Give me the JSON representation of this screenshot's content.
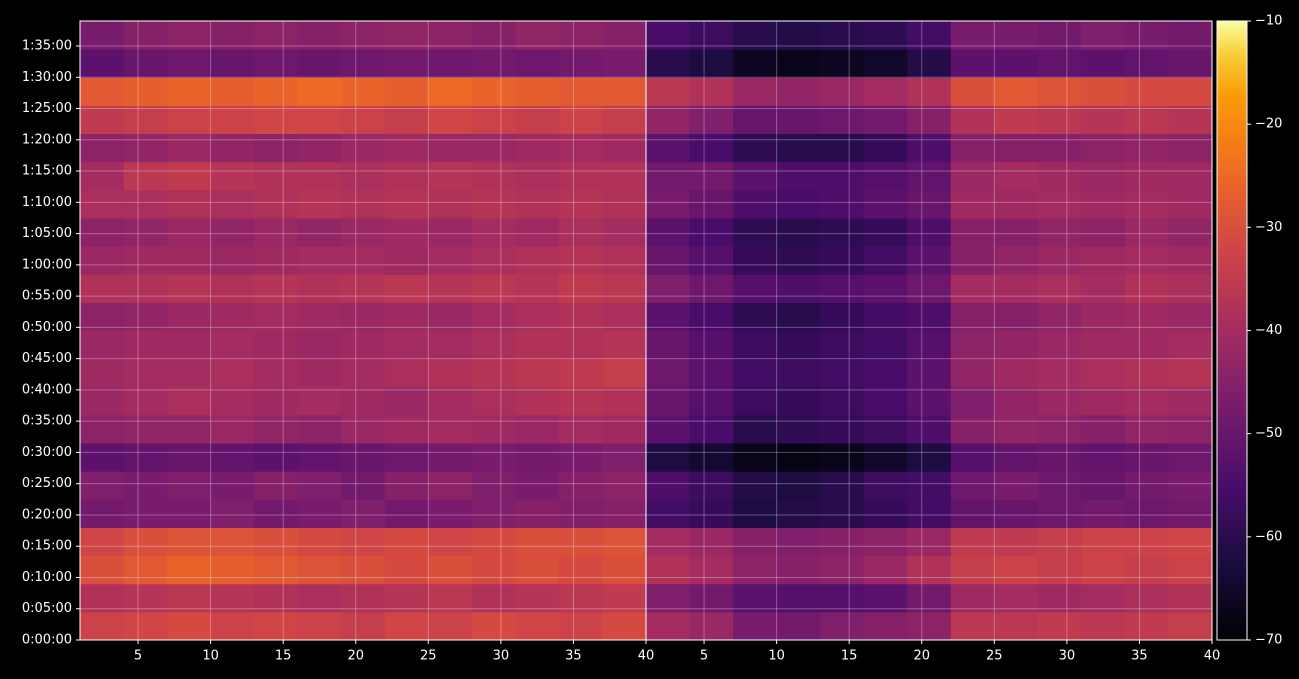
{
  "chart_data": {
    "type": "heatmap",
    "colormap": "inferno",
    "grid": true,
    "ylim": [
      0,
      5940
    ],
    "ybins": [
      0,
      270,
      540,
      810,
      1080,
      1350,
      1620,
      1890,
      2160,
      2430,
      2700,
      2970,
      3240,
      3510,
      3780,
      4050,
      4320,
      4590,
      4860,
      5130,
      5400,
      5670,
      5940
    ],
    "yticks": [
      {
        "value": 0,
        "label": "0:00:00"
      },
      {
        "value": 300,
        "label": "0:05:00"
      },
      {
        "value": 600,
        "label": "0:10:00"
      },
      {
        "value": 900,
        "label": "0:15:00"
      },
      {
        "value": 1200,
        "label": "0:20:00"
      },
      {
        "value": 1500,
        "label": "0:25:00"
      },
      {
        "value": 1800,
        "label": "0:30:00"
      },
      {
        "value": 2100,
        "label": "0:35:00"
      },
      {
        "value": 2400,
        "label": "0:40:00"
      },
      {
        "value": 2700,
        "label": "0:45:00"
      },
      {
        "value": 3000,
        "label": "0:50:00"
      },
      {
        "value": 3300,
        "label": "0:55:00"
      },
      {
        "value": 3600,
        "label": "1:00:00"
      },
      {
        "value": 3900,
        "label": "1:05:00"
      },
      {
        "value": 4200,
        "label": "1:10:00"
      },
      {
        "value": 4500,
        "label": "1:15:00"
      },
      {
        "value": 4800,
        "label": "1:20:00"
      },
      {
        "value": 5100,
        "label": "1:25:00"
      },
      {
        "value": 5400,
        "label": "1:30:00"
      },
      {
        "value": 5700,
        "label": "1:35:00"
      }
    ],
    "colorbar": {
      "lim": [
        -70,
        -10
      ],
      "ticks": [
        {
          "value": -70,
          "label": "−70"
        },
        {
          "value": -60,
          "label": "−60"
        },
        {
          "value": -50,
          "label": "−50"
        },
        {
          "value": -40,
          "label": "−40"
        },
        {
          "value": -30,
          "label": "−30"
        },
        {
          "value": -20,
          "label": "−20"
        },
        {
          "value": -10,
          "label": "−10"
        }
      ]
    },
    "panels": [
      {
        "xlim": [
          1,
          40
        ],
        "xticks": [
          5,
          10,
          15,
          20,
          25,
          30,
          35,
          40
        ],
        "xbins": [
          1,
          4,
          7,
          10,
          13,
          16,
          19,
          22,
          25,
          28,
          31,
          34,
          37,
          40
        ],
        "values": [
          [
            -33,
            -32,
            -31,
            -33,
            -32,
            -33,
            -34,
            -32,
            -33,
            -31,
            -32,
            -33,
            -31
          ],
          [
            -38,
            -37,
            -36,
            -37,
            -38,
            -39,
            -38,
            -37,
            -36,
            -38,
            -37,
            -36,
            -35
          ],
          [
            -30,
            -28,
            -26,
            -27,
            -28,
            -29,
            -30,
            -31,
            -30,
            -31,
            -30,
            -31,
            -30
          ],
          [
            -32,
            -30,
            -29,
            -29,
            -30,
            -31,
            -32,
            -31,
            -32,
            -31,
            -30,
            -30,
            -29
          ],
          [
            -48,
            -47,
            -47,
            -46,
            -48,
            -47,
            -46,
            -48,
            -47,
            -46,
            -45,
            -46,
            -45
          ],
          [
            -46,
            -47,
            -46,
            -47,
            -45,
            -46,
            -48,
            -45,
            -44,
            -46,
            -47,
            -45,
            -44
          ],
          [
            -52,
            -51,
            -50,
            -51,
            -52,
            -51,
            -50,
            -49,
            -48,
            -47,
            -48,
            -47,
            -46
          ],
          [
            -44,
            -43,
            -43,
            -42,
            -43,
            -44,
            -42,
            -41,
            -40,
            -41,
            -42,
            -40,
            -41
          ],
          [
            -42,
            -40,
            -39,
            -40,
            -41,
            -40,
            -41,
            -42,
            -40,
            -39,
            -38,
            -37,
            -38
          ],
          [
            -41,
            -40,
            -40,
            -39,
            -40,
            -41,
            -40,
            -39,
            -38,
            -37,
            -36,
            -35,
            -34
          ],
          [
            -42,
            -41,
            -41,
            -40,
            -41,
            -42,
            -41,
            -40,
            -40,
            -39,
            -38,
            -38,
            -37
          ],
          [
            -44,
            -43,
            -42,
            -41,
            -40,
            -41,
            -42,
            -41,
            -42,
            -40,
            -39,
            -38,
            -39
          ],
          [
            -38,
            -38,
            -37,
            -38,
            -37,
            -38,
            -37,
            -36,
            -37,
            -36,
            -37,
            -35,
            -36
          ],
          [
            -42,
            -41,
            -41,
            -42,
            -41,
            -40,
            -40,
            -41,
            -40,
            -39,
            -38,
            -37,
            -38
          ],
          [
            -44,
            -43,
            -42,
            -43,
            -42,
            -43,
            -42,
            -41,
            -42,
            -40,
            -41,
            -39,
            -40
          ],
          [
            -39,
            -39,
            -38,
            -39,
            -38,
            -37,
            -38,
            -37,
            -38,
            -37,
            -38,
            -37,
            -38
          ],
          [
            -40,
            -36,
            -35,
            -37,
            -38,
            -38,
            -39,
            -38,
            -37,
            -38,
            -39,
            -38,
            -38
          ],
          [
            -44,
            -43,
            -42,
            -43,
            -44,
            -43,
            -42,
            -41,
            -42,
            -42,
            -41,
            -40,
            -41
          ],
          [
            -35,
            -34,
            -33,
            -33,
            -32,
            -32,
            -33,
            -34,
            -32,
            -33,
            -34,
            -33,
            -34
          ],
          [
            -28,
            -27,
            -26,
            -27,
            -26,
            -25,
            -26,
            -27,
            -25,
            -26,
            -27,
            -28,
            -28
          ],
          [
            -52,
            -50,
            -49,
            -50,
            -49,
            -50,
            -49,
            -48,
            -49,
            -48,
            -49,
            -48,
            -47
          ],
          [
            -47,
            -45,
            -44,
            -45,
            -44,
            -45,
            -44,
            -43,
            -44,
            -45,
            -43,
            -44,
            -45
          ]
        ]
      },
      {
        "xlim": [
          1,
          40
        ],
        "xticks": [
          5,
          10,
          15,
          20,
          25,
          30,
          35,
          40
        ],
        "xbins": [
          1,
          4,
          7,
          10,
          13,
          16,
          19,
          22,
          25,
          28,
          31,
          34,
          37,
          40
        ],
        "values": [
          [
            -40,
            -42,
            -47,
            -48,
            -46,
            -45,
            -44,
            -36,
            -36,
            -35,
            -36,
            -35,
            -34
          ],
          [
            -46,
            -48,
            -52,
            -53,
            -53,
            -52,
            -48,
            -41,
            -40,
            -41,
            -40,
            -39,
            -38
          ],
          [
            -38,
            -40,
            -44,
            -45,
            -44,
            -42,
            -38,
            -34,
            -33,
            -34,
            -33,
            -34,
            -33
          ],
          [
            -40,
            -42,
            -45,
            -46,
            -45,
            -44,
            -42,
            -35,
            -35,
            -34,
            -33,
            -33,
            -32
          ],
          [
            -56,
            -58,
            -62,
            -61,
            -60,
            -58,
            -56,
            -51,
            -50,
            -49,
            -48,
            -49,
            -48
          ],
          [
            -54,
            -57,
            -61,
            -62,
            -60,
            -57,
            -56,
            -49,
            -47,
            -49,
            -50,
            -48,
            -47
          ],
          [
            -62,
            -64,
            -67,
            -68,
            -67,
            -65,
            -62,
            -53,
            -51,
            -50,
            -51,
            -50,
            -49
          ],
          [
            -52,
            -55,
            -60,
            -59,
            -58,
            -57,
            -54,
            -45,
            -43,
            -44,
            -45,
            -43,
            -44
          ],
          [
            -50,
            -53,
            -57,
            -58,
            -57,
            -55,
            -52,
            -46,
            -43,
            -42,
            -41,
            -40,
            -41
          ],
          [
            -49,
            -52,
            -56,
            -57,
            -56,
            -55,
            -52,
            -43,
            -41,
            -40,
            -39,
            -38,
            -37
          ],
          [
            -50,
            -53,
            -57,
            -58,
            -57,
            -56,
            -53,
            -44,
            -43,
            -42,
            -41,
            -41,
            -40
          ],
          [
            -52,
            -55,
            -59,
            -60,
            -58,
            -56,
            -54,
            -45,
            -45,
            -43,
            -42,
            -41,
            -42
          ],
          [
            -46,
            -49,
            -53,
            -54,
            -53,
            -52,
            -49,
            -40,
            -40,
            -39,
            -40,
            -38,
            -39
          ],
          [
            -50,
            -53,
            -58,
            -59,
            -58,
            -56,
            -52,
            -45,
            -43,
            -42,
            -41,
            -40,
            -41
          ],
          [
            -52,
            -55,
            -59,
            -60,
            -59,
            -58,
            -54,
            -45,
            -45,
            -43,
            -44,
            -42,
            -43
          ],
          [
            -47,
            -50,
            -54,
            -55,
            -54,
            -52,
            -50,
            -41,
            -41,
            -40,
            -41,
            -40,
            -41
          ],
          [
            -48,
            -48,
            -52,
            -54,
            -54,
            -53,
            -51,
            -42,
            -40,
            -41,
            -42,
            -41,
            -41
          ],
          [
            -52,
            -55,
            -59,
            -60,
            -60,
            -58,
            -54,
            -45,
            -45,
            -45,
            -44,
            -43,
            -44
          ],
          [
            -43,
            -46,
            -50,
            -50,
            -49,
            -48,
            -45,
            -38,
            -35,
            -36,
            -37,
            -36,
            -37
          ],
          [
            -36,
            -38,
            -42,
            -43,
            -42,
            -40,
            -38,
            -30,
            -28,
            -29,
            -30,
            -31,
            -31
          ],
          [
            -60,
            -62,
            -66,
            -67,
            -66,
            -65,
            -61,
            -52,
            -52,
            -51,
            -52,
            -51,
            -50
          ],
          [
            -55,
            -57,
            -60,
            -61,
            -60,
            -59,
            -56,
            -47,
            -47,
            -48,
            -46,
            -47,
            -48
          ]
        ]
      }
    ]
  }
}
